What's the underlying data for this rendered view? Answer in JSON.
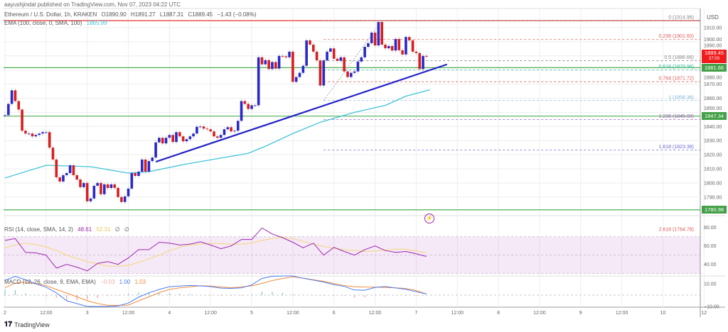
{
  "header": {
    "published": "aayushjindal published on TradingView.com, Nov 07, 2023 04:22 UTC",
    "symbol": "Ethereum / U.S. Dollar, 1h, KRAKEN",
    "open": "O1890.90",
    "high": "H1891.27",
    "low": "L1887.31",
    "close": "C1889.45",
    "change": "−1.43 (−0.08%)",
    "ema_label": "EMA (100, close, 0, SMA, 100)",
    "ema_value": "1865.99"
  },
  "rsi_legend": {
    "label": "RSI (14, close, SMA, 14, 2)",
    "rsi": "48.61",
    "ma": "52.31",
    "v3": "∅",
    "v4": "∅"
  },
  "macd_legend": {
    "label": "MACD (12, 26, close, 9, EMA, EMA)",
    "hist": "−0.03",
    "macd": "1.00",
    "signal": "1.03"
  },
  "footer": {
    "brand": "TradingView",
    "logo": "TV"
  },
  "colors": {
    "up": "#2929c9",
    "down": "#d91e1e",
    "ema": "#3fc3d6",
    "trend": "#2323c8",
    "support": "#4caf50",
    "resistance": "#e0302f",
    "rsi": "#9c27b0",
    "rsi_ma": "#f3d98b",
    "macd": "#4a7cf0",
    "signal": "#f28b3c"
  },
  "icons": {
    "events": "lightning-icon"
  },
  "chart_data": {
    "type": "candlestick",
    "currency": "USD",
    "interval": "1h",
    "start": "2023-11-02 00:00",
    "first_open": 1848,
    "close": [
      1848,
      1856,
      1865.6,
      1858,
      1852,
      1837,
      1835,
      1835,
      1833,
      1834,
      1835,
      1836,
      1836,
      1825,
      1816.6,
      1804,
      1801,
      1805.5,
      1807,
      1812.5,
      1805.5,
      1802.4,
      1797,
      1800,
      1787,
      1789,
      1798,
      1800,
      1792,
      1799,
      1796.4,
      1799,
      1796.5,
      1790,
      1786.5,
      1790.5,
      1796,
      1807,
      1805,
      1808,
      1816.6,
      1808,
      1815.5,
      1818,
      1828.7,
      1832,
      1828,
      1832,
      1834,
      1829,
      1836,
      1833,
      1829.5,
      1831,
      1833,
      1835,
      1839.8,
      1840,
      1838.5,
      1838,
      1836.5,
      1833,
      1832,
      1834,
      1838,
      1839.5,
      1836.5,
      1837,
      1844,
      1858,
      1856,
      1852.4,
      1855,
      1855,
      1889,
      1884,
      1887,
      1880.7,
      1885.7,
      1881,
      1890,
      1889.7,
      1889,
      1893,
      1871.6,
      1875,
      1878,
      1883,
      1901,
      1898,
      1893,
      1886.8,
      1869,
      1886.8,
      1893,
      1895.3,
      1888,
      1886.5,
      1889,
      1879,
      1875,
      1878,
      1879,
      1886,
      1889,
      1896.4,
      1899,
      1906.5,
      1897.4,
      1914,
      1898,
      1895.4,
      1897,
      1893.8,
      1902,
      1894,
      1891,
      1903.4,
      1901,
      1893,
      1892,
      1880.7,
      1890,
      1889.45
    ],
    "ema_100": [
      [
        "2023-11-02 00:00",
        1803.5
      ],
      [
        "2023-11-02 12:00",
        1812.5
      ],
      [
        "2023-11-03 01:00",
        1811.5
      ],
      [
        "2023-11-03 12:00",
        1807
      ],
      [
        "2023-11-03 18:00",
        1808
      ],
      [
        "2023-11-04 04:00",
        1813
      ],
      [
        "2023-11-04 23:00",
        1821
      ],
      [
        "2023-11-05 04:00",
        1826
      ],
      [
        "2023-11-05 12:00",
        1835
      ],
      [
        "2023-11-05 20:00",
        1843
      ],
      [
        "2023-11-06 06:00",
        1850
      ],
      [
        "2023-11-06 15:00",
        1855
      ],
      [
        "2023-11-06 21:00",
        1861.5
      ],
      [
        "2023-11-07 04:00",
        1866
      ]
    ],
    "trend_line": [
      [
        "2023-11-03 20:00",
        1815
      ],
      [
        "2023-11-07 09:00",
        1884
      ]
    ],
    "fib_anchor": [
      [
        "2023-11-05 21:00",
        1858.36
      ],
      [
        "2023-11-06 14:00",
        1914.96
      ]
    ],
    "fib_levels": [
      {
        "label": "0 (1914.96)",
        "price": 1914.96,
        "color": "#888888"
      },
      {
        "label": "0.236 (1901.60)",
        "price": 1901.6,
        "color": "#e05a5a"
      },
      {
        "label": "0.5 (1886.66)",
        "price": 1886.66,
        "color": "#888888"
      },
      {
        "label": "0.618 (1879.98)",
        "price": 1879.98,
        "color": "#2fb39a"
      },
      {
        "label": "0.764 (1871.72)",
        "price": 1871.72,
        "color": "#e05a5a"
      },
      {
        "label": "1 (1858.36)",
        "price": 1858.36,
        "color": "#7fb6d8"
      },
      {
        "label": "1.236 (1845.00)",
        "price": 1845.0,
        "color": "#9c5ab5"
      },
      {
        "label": "1.618 (1823.38)",
        "price": 1823.38,
        "color": "#6a6ad8"
      },
      {
        "label": "2.618 (1764.78)",
        "price": 1764.78,
        "color": "#e05a5a"
      }
    ],
    "resistance_line": 1914.96,
    "support_lines": [
      {
        "price": 1881.66,
        "label": "1881.66"
      },
      {
        "price": 1847.34,
        "label": "1847.34"
      },
      {
        "price": 1780.98,
        "label": "1780.98"
      }
    ],
    "last_price": {
      "label": "1889.45",
      "countdown": "37:03"
    },
    "price_ticks": [
      "1910.00",
      "1900.00",
      "1890.00",
      "1880.00",
      "1870.00",
      "1860.00",
      "1850.00",
      "1840.00",
      "1830.00",
      "1820.00",
      "1810.00",
      "1800.00",
      "1790.00"
    ],
    "time_ticks": [
      {
        "label": "2",
        "time": "2023-11-02 00:00"
      },
      {
        "label": "12:00",
        "time": "2023-11-02 12:00"
      },
      {
        "label": "3",
        "time": "2023-11-03 00:00"
      },
      {
        "label": "12:00",
        "time": "2023-11-03 12:00"
      },
      {
        "label": "4",
        "time": "2023-11-04 00:00"
      },
      {
        "label": "12:00",
        "time": "2023-11-04 12:00"
      },
      {
        "label": "5",
        "time": "2023-11-05 00:00"
      },
      {
        "label": "12:00",
        "time": "2023-11-05 12:00"
      },
      {
        "label": "6",
        "time": "2023-11-06 00:00"
      },
      {
        "label": "12:00",
        "time": "2023-11-06 12:00"
      },
      {
        "label": "7",
        "time": "2023-11-07 00:00"
      },
      {
        "label": "12:00",
        "time": "2023-11-07 12:00"
      },
      {
        "label": "8",
        "time": "2023-11-08 00:00"
      },
      {
        "label": "12:00",
        "time": "2023-11-08 12:00"
      },
      {
        "label": "9",
        "time": "2023-11-09 00:00"
      },
      {
        "label": "12:00",
        "time": "2023-11-09 12:00"
      },
      {
        "label": "10",
        "time": "2023-11-10 00:00"
      },
      {
        "label": "12",
        "time": "2023-11-10 12:00"
      }
    ],
    "rsi": {
      "step": "3h",
      "ticks": [
        "80.00",
        "60.00",
        "40.00"
      ],
      "band": [
        30,
        70
      ],
      "values": [
        66,
        68,
        53,
        52.5,
        50,
        36,
        40,
        37,
        33,
        41,
        43,
        40,
        47,
        56,
        56,
        64,
        63,
        61,
        62,
        64.5,
        61,
        57,
        60,
        67,
        67,
        79.5,
        73,
        69,
        64,
        58,
        63,
        50,
        58.5,
        54,
        50,
        56,
        60,
        55,
        53,
        54,
        51.5,
        48.61
      ],
      "ma": [
        58,
        61,
        63,
        61.5,
        59,
        55,
        50,
        46.5,
        43,
        40.5,
        38,
        38,
        39,
        42,
        46,
        50,
        55,
        58.5,
        61,
        62,
        62.8,
        62.5,
        61.7,
        62,
        63,
        66,
        68,
        69.5,
        68,
        65,
        62,
        59.5,
        57.5,
        56,
        55,
        54,
        54.5,
        55.5,
        56.5,
        56.5,
        54.5,
        52.31
      ]
    },
    "macd": {
      "step": "3h",
      "ticks": [
        "10.00",
        "−10.00"
      ],
      "macd": [
        13,
        16.5,
        13.5,
        10,
        7,
        2,
        -5,
        -7.5,
        -10.5,
        -10.8,
        -10.2,
        -9.5,
        -7,
        -1.8,
        2,
        5,
        7.4,
        8,
        8.5,
        8.1,
        7.5,
        6.2,
        5.9,
        6.4,
        9,
        14.7,
        16.6,
        17.4,
        17.5,
        14.8,
        13.2,
        11.5,
        9.2,
        7.7,
        4.5,
        4.3,
        6.8,
        7.6,
        6.3,
        5.1,
        3,
        1.0
      ],
      "signal": [
        6.5,
        10.5,
        11.5,
        10,
        8.4,
        5,
        1.8,
        -1.5,
        -5,
        -7.4,
        -9,
        -9,
        -8.8,
        -5,
        -1.5,
        2.2,
        5,
        6.4,
        7.3,
        8.3,
        8,
        7.2,
        6.5,
        7.2,
        8.2,
        10.3,
        12.8,
        14.6,
        16.2,
        15,
        13.5,
        12.2,
        10.2,
        8.4,
        7.4,
        7.1,
        7,
        6.7,
        6.4,
        5.9,
        4,
        1.03
      ]
    }
  }
}
